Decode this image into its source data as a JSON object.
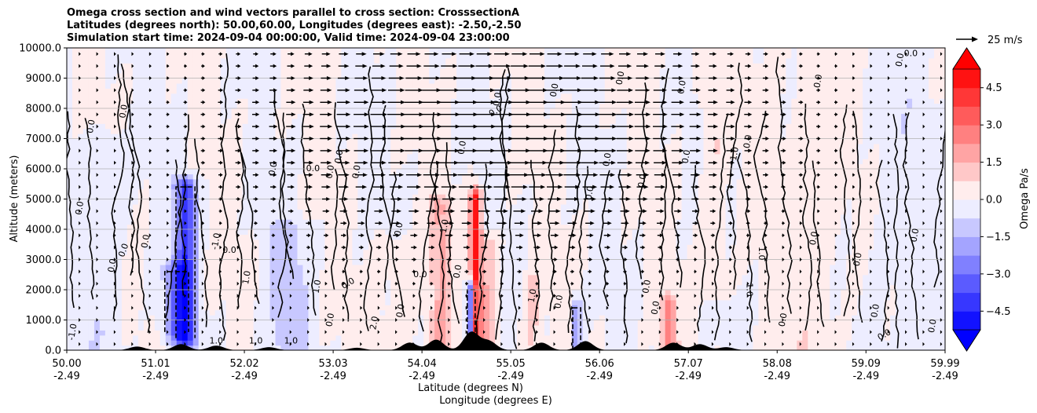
{
  "chart_data": {
    "type": "heatmap",
    "title_lines": [
      "Omega cross section and wind vectors parallel to cross section: CrosssectionA",
      "Latitudes (degrees north): 50.00,60.00, Longitudes (degrees east): -2.50,-2.50",
      "Simulation start time: 2024-09-04 00:00:00, Valid time: 2024-09-04 23:00:00"
    ],
    "ylabel": "Altitude (meters)",
    "xlabel_lat": "Latitude (degrees N)",
    "xlabel_lon": "Longitude (degrees E)",
    "ylim": [
      0,
      10000
    ],
    "xlim": [
      50.0,
      59.99
    ],
    "y_ticks": [
      {
        "value": 0,
        "label": "0.0"
      },
      {
        "value": 1000,
        "label": "1000.0"
      },
      {
        "value": 2000,
        "label": "2000.0"
      },
      {
        "value": 3000,
        "label": "3000.0"
      },
      {
        "value": 4000,
        "label": "4000.0"
      },
      {
        "value": 5000,
        "label": "5000.0"
      },
      {
        "value": 6000,
        "label": "6000.0"
      },
      {
        "value": 7000,
        "label": "7000.0"
      },
      {
        "value": 8000,
        "label": "8000.0"
      },
      {
        "value": 9000,
        "label": "9000.0"
      },
      {
        "value": 10000,
        "label": "10000.0"
      }
    ],
    "x_ticks": [
      {
        "value": 50.0,
        "lat": "50.00",
        "lon": "-2.49"
      },
      {
        "value": 51.01,
        "lat": "51.01",
        "lon": "-2.49"
      },
      {
        "value": 52.02,
        "lat": "52.02",
        "lon": "-2.49"
      },
      {
        "value": 53.03,
        "lat": "53.03",
        "lon": "-2.49"
      },
      {
        "value": 54.04,
        "lat": "54.04",
        "lon": "-2.49"
      },
      {
        "value": 55.05,
        "lat": "55.05",
        "lon": "-2.49"
      },
      {
        "value": 56.06,
        "lat": "56.06",
        "lon": "-2.49"
      },
      {
        "value": 57.07,
        "lat": "57.07",
        "lon": "-2.49"
      },
      {
        "value": 58.08,
        "lat": "58.08",
        "lon": "-2.49"
      },
      {
        "value": 59.09,
        "lat": "59.09",
        "lon": "-2.49"
      },
      {
        "value": 59.99,
        "lat": "59.99",
        "lon": "-2.49"
      }
    ],
    "colorbar": {
      "label": "Omega Pa/s",
      "vmin": -5.25,
      "vmax": 5.25,
      "extend": "both",
      "ticks": [
        {
          "value": 4.5,
          "label": "4.5"
        },
        {
          "value": 3.0,
          "label": "3.0"
        },
        {
          "value": 1.5,
          "label": "1.5"
        },
        {
          "value": 0.0,
          "label": "0.0"
        },
        {
          "value": -1.5,
          "label": "−1.5"
        },
        {
          "value": -3.0,
          "label": "−3.0"
        },
        {
          "value": -4.5,
          "label": "−4.5"
        }
      ],
      "negative_color": "#0000ff",
      "positive_color": "#ff0000",
      "neutral_color": "#ffffff"
    },
    "quiver_key": {
      "label": "25 m/s",
      "speed_ms": 25
    },
    "omega_features": [
      {
        "lat": 51.35,
        "alt_lo": 400,
        "alt_hi": 5400,
        "width": 0.12,
        "value": -4.0
      },
      {
        "lat": 51.25,
        "alt_lo": 600,
        "alt_hi": 2600,
        "width": 0.15,
        "value": -2.0
      },
      {
        "lat": 52.5,
        "alt_lo": 0,
        "alt_hi": 4000,
        "width": 0.25,
        "value": -1.0
      },
      {
        "lat": 54.25,
        "alt_lo": 0,
        "alt_hi": 4800,
        "width": 0.12,
        "value": 1.5
      },
      {
        "lat": 54.65,
        "alt_lo": 0,
        "alt_hi": 5000,
        "width": 0.06,
        "value": 5.0
      },
      {
        "lat": 54.6,
        "alt_lo": 0,
        "alt_hi": 2000,
        "width": 0.05,
        "value": -4.5
      },
      {
        "lat": 54.8,
        "alt_lo": 0,
        "alt_hi": 3500,
        "width": 0.1,
        "value": 1.5
      },
      {
        "lat": 55.3,
        "alt_lo": 0,
        "alt_hi": 2200,
        "width": 0.1,
        "value": 1.0
      },
      {
        "lat": 55.8,
        "alt_lo": 0,
        "alt_hi": 1400,
        "width": 0.05,
        "value": -2.5
      },
      {
        "lat": 56.85,
        "alt_lo": 0,
        "alt_hi": 1500,
        "width": 0.08,
        "value": 2.5
      },
      {
        "lat": 57.35,
        "alt_lo": 2000,
        "alt_hi": 10000,
        "width": 0.15,
        "value": 0.8
      },
      {
        "lat": 58.5,
        "alt_lo": 0,
        "alt_hi": 10000,
        "width": 0.4,
        "value": 0.5
      },
      {
        "lat": 53.8,
        "alt_lo": 0,
        "alt_hi": 3500,
        "width": 0.25,
        "value": 0.5
      },
      {
        "lat": 50.4,
        "alt_lo": 0,
        "alt_hi": 7000,
        "width": 0.3,
        "value": -0.5
      },
      {
        "lat": 59.4,
        "alt_lo": 0,
        "alt_hi": 10000,
        "width": 0.4,
        "value": -0.4
      }
    ],
    "wind_vectors": {
      "lat_spacing": 0.2,
      "alt_spacing": 400,
      "max_speed_ms": 25,
      "jet_centre_lat": 55.0,
      "jet_centre_alt": 7500
    },
    "terrain_peaks": [
      {
        "lat": 50.8,
        "height": 120
      },
      {
        "lat": 51.3,
        "height": 200
      },
      {
        "lat": 51.7,
        "height": 150
      },
      {
        "lat": 52.3,
        "height": 100
      },
      {
        "lat": 53.3,
        "height": 80
      },
      {
        "lat": 53.9,
        "height": 250
      },
      {
        "lat": 54.2,
        "height": 350
      },
      {
        "lat": 54.6,
        "height": 600
      },
      {
        "lat": 54.8,
        "height": 300
      },
      {
        "lat": 55.4,
        "height": 250
      },
      {
        "lat": 55.9,
        "height": 300
      },
      {
        "lat": 56.9,
        "height": 250
      },
      {
        "lat": 57.2,
        "height": 200
      },
      {
        "lat": 57.5,
        "height": 100
      }
    ],
    "contour_labels": [
      {
        "text": "0.0",
        "lat": 50.28,
        "alt": 7400,
        "rot": -80
      },
      {
        "text": "0.0",
        "lat": 50.15,
        "alt": 4700,
        "rot": -80
      },
      {
        "text": "0.0",
        "lat": 50.65,
        "alt": 7900,
        "rot": -80
      },
      {
        "text": "0.0",
        "lat": 50.9,
        "alt": 3600,
        "rot": -80
      },
      {
        "text": "0.0",
        "lat": 50.65,
        "alt": 3300,
        "rot": -70
      },
      {
        "text": "0.0",
        "lat": 50.52,
        "alt": 2800,
        "rot": -80
      },
      {
        "text": "-1.0",
        "lat": 50.07,
        "alt": 600,
        "rot": -80
      },
      {
        "text": "-1.0",
        "lat": 51.7,
        "alt": 3600,
        "rot": -80
      },
      {
        "text": "1.0",
        "lat": 52.05,
        "alt": 2400,
        "rot": -80
      },
      {
        "text": "0.0",
        "lat": 51.85,
        "alt": 3300,
        "rot": 0
      },
      {
        "text": "0.0",
        "lat": 52.35,
        "alt": 6000,
        "rot": -80
      },
      {
        "text": "0.0",
        "lat": 52.8,
        "alt": 6000,
        "rot": 0
      },
      {
        "text": "0.0",
        "lat": 53.0,
        "alt": 5900,
        "rot": -80
      },
      {
        "text": "0.0",
        "lat": 53.1,
        "alt": 6400,
        "rot": -80
      },
      {
        "text": "0.0",
        "lat": 53.3,
        "alt": 5900,
        "rot": -80
      },
      {
        "text": "1.0",
        "lat": 52.85,
        "alt": 2100,
        "rot": -80
      },
      {
        "text": "0.0",
        "lat": 53.2,
        "alt": 2200,
        "rot": -30
      },
      {
        "text": "0.0",
        "lat": 53.0,
        "alt": 1000,
        "rot": -80
      },
      {
        "text": "0.0",
        "lat": 53.78,
        "alt": 4000,
        "rot": -80
      },
      {
        "text": "2.0",
        "lat": 53.5,
        "alt": 900,
        "rot": -80
      },
      {
        "text": "0.0",
        "lat": 53.8,
        "alt": 1300,
        "rot": -80
      },
      {
        "text": "0.0",
        "lat": 54.02,
        "alt": 2500,
        "rot": 0
      },
      {
        "text": "1.0",
        "lat": 54.3,
        "alt": 4100,
        "rot": -80
      },
      {
        "text": "0.0",
        "lat": 54.5,
        "alt": 6700,
        "rot": -80
      },
      {
        "text": "0.0",
        "lat": 54.88,
        "alt": 7900,
        "rot": -30
      },
      {
        "text": "0.0",
        "lat": 54.9,
        "alt": 8300,
        "rot": -80
      },
      {
        "text": "0.0",
        "lat": 54.45,
        "alt": 2600,
        "rot": -80
      },
      {
        "text": "1.0",
        "lat": 55.3,
        "alt": 1800,
        "rot": -80
      },
      {
        "text": "0.0",
        "lat": 55.6,
        "alt": 1600,
        "rot": -80
      },
      {
        "text": "0.0",
        "lat": 55.55,
        "alt": 8600,
        "rot": -80
      },
      {
        "text": "0.0",
        "lat": 56.3,
        "alt": 9000,
        "rot": -80
      },
      {
        "text": "0.0",
        "lat": 56.15,
        "alt": 6300,
        "rot": -80
      },
      {
        "text": "0.0",
        "lat": 55.95,
        "alt": 5200,
        "rot": -80
      },
      {
        "text": "0.0",
        "lat": 56.55,
        "alt": 5600,
        "rot": -80
      },
      {
        "text": "0.0",
        "lat": 56.6,
        "alt": 2100,
        "rot": -80
      },
      {
        "text": "0.0",
        "lat": 56.7,
        "alt": 1400,
        "rot": -80
      },
      {
        "text": "0.0",
        "lat": 57.05,
        "alt": 6400,
        "rot": -80
      },
      {
        "text": "0.0",
        "lat": 57.0,
        "alt": 8700,
        "rot": -80
      },
      {
        "text": "1.0",
        "lat": 57.6,
        "alt": 6500,
        "rot": -80
      },
      {
        "text": "0.0",
        "lat": 57.75,
        "alt": 6900,
        "rot": -80
      },
      {
        "text": "1.0",
        "lat": 57.9,
        "alt": 3200,
        "rot": 90
      },
      {
        "text": "1.0",
        "lat": 57.76,
        "alt": 2000,
        "rot": 90
      },
      {
        "text": "0.0",
        "lat": 58.15,
        "alt": 1000,
        "rot": -80
      },
      {
        "text": "0.0",
        "lat": 58.5,
        "alt": 3700,
        "rot": -80
      },
      {
        "text": "0.0",
        "lat": 58.55,
        "alt": 8900,
        "rot": -80
      },
      {
        "text": "0.0",
        "lat": 59.0,
        "alt": 3000,
        "rot": -80
      },
      {
        "text": "0.0",
        "lat": 59.2,
        "alt": 1300,
        "rot": -80
      },
      {
        "text": "0.0",
        "lat": 59.3,
        "alt": 500,
        "rot": -30
      },
      {
        "text": "0.0",
        "lat": 59.48,
        "alt": 9600,
        "rot": -80
      },
      {
        "text": "0.0",
        "lat": 59.6,
        "alt": 9800,
        "rot": 0
      },
      {
        "text": "0.0",
        "lat": 59.65,
        "alt": 3800,
        "rot": -80
      },
      {
        "text": "0.0",
        "lat": 59.85,
        "alt": 800,
        "rot": -80
      },
      {
        "text": "1.0",
        "lat": 51.7,
        "alt": 300,
        "rot": 0
      },
      {
        "text": "1.0",
        "lat": 52.15,
        "alt": 300,
        "rot": 0
      },
      {
        "text": "1.0",
        "lat": 52.55,
        "alt": 300,
        "rot": 0
      }
    ]
  }
}
